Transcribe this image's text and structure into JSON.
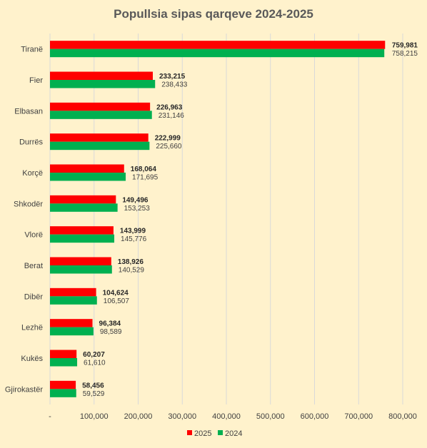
{
  "chart_data": {
    "type": "bar",
    "orientation": "horizontal",
    "title": "Popullsia sipas qarqeve 2024-2025",
    "categories": [
      "Tiranë",
      "Fier",
      "Elbasan",
      "Durrës",
      "Korçë",
      "Shkodër",
      "Vlorë",
      "Berat",
      "Dibër",
      "Lezhë",
      "Kukës",
      "Gjirokastër"
    ],
    "series": [
      {
        "name": "2025",
        "color": "#ff0000",
        "values": [
          759981,
          233215,
          226963,
          222999,
          168064,
          149496,
          143999,
          138926,
          104624,
          96384,
          60207,
          58456
        ],
        "labels": [
          "759,981",
          "233,215",
          "226,963",
          "222,999",
          "168,064",
          "149,496",
          "143,999",
          "138,926",
          "104,624",
          "96,384",
          "60,207",
          "58,456"
        ]
      },
      {
        "name": "2024",
        "color": "#00b050",
        "values": [
          758215,
          238433,
          231146,
          225660,
          171695,
          153253,
          145776,
          140529,
          106507,
          98589,
          61610,
          59529
        ],
        "labels": [
          "758,215",
          "238,433",
          "231,146",
          "225,660",
          "171,695",
          "153,253",
          "145,776",
          "140,529",
          "106,507",
          "98,589",
          "61,610",
          "59,529"
        ]
      }
    ],
    "xlim": [
      0,
      800000
    ],
    "xticks": [
      0,
      100000,
      200000,
      300000,
      400000,
      500000,
      600000,
      700000,
      800000
    ],
    "xtick_labels": [
      "-",
      "100,000",
      "200,000",
      "300,000",
      "400,000",
      "500,000",
      "600,000",
      "700,000",
      "800,000"
    ],
    "grid": true,
    "legend_position": "bottom",
    "background": "#fff2cc",
    "gridline_color": "#d9d9d9"
  }
}
